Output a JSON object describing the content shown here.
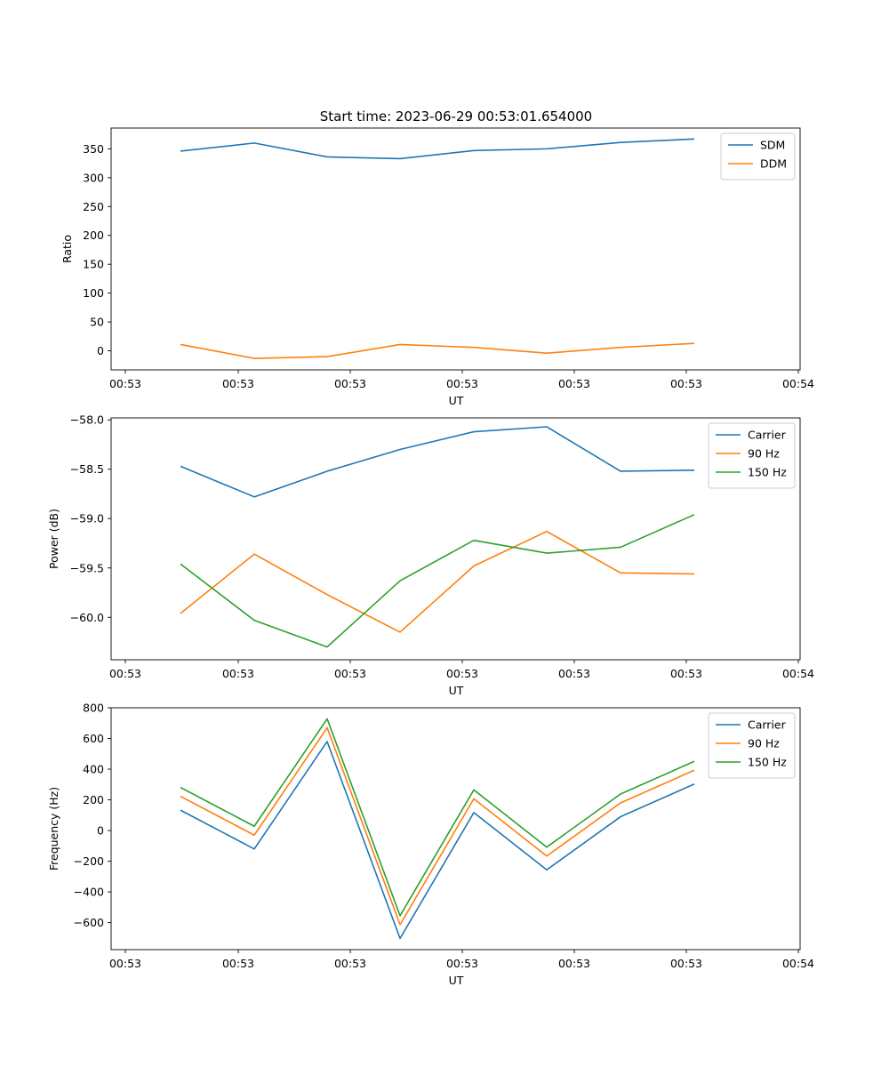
{
  "title": "Start time: 2023-06-29 00:53:01.654000",
  "chart_data": [
    {
      "type": "line",
      "xlabel": "UT",
      "ylabel": "Ratio",
      "x_tick_labels": [
        "00:53",
        "00:53",
        "00:53",
        "00:53",
        "00:53",
        "00:53",
        "00:54"
      ],
      "ylim": [
        -33,
        386
      ],
      "y_ticks": [
        0,
        50,
        100,
        150,
        200,
        250,
        300,
        350
      ],
      "y_tick_labels": [
        "0",
        "50",
        "100",
        "150",
        "200",
        "250",
        "300",
        "350"
      ],
      "legend": "top-right",
      "series": [
        {
          "name": "SDM",
          "color": "#1f77b4",
          "values": [
            346,
            360,
            336,
            333,
            347,
            350,
            361,
            367
          ]
        },
        {
          "name": "DDM",
          "color": "#ff7f0e",
          "values": [
            11,
            -13,
            -10,
            11,
            6,
            -4,
            6,
            13
          ]
        }
      ]
    },
    {
      "type": "line",
      "xlabel": "UT",
      "ylabel": "Power (dB)",
      "x_tick_labels": [
        "00:53",
        "00:53",
        "00:53",
        "00:53",
        "00:53",
        "00:53",
        "00:54"
      ],
      "ylim": [
        -60.43,
        -57.98
      ],
      "y_ticks": [
        -60.0,
        -59.5,
        -59.0,
        -58.5,
        -58.0
      ],
      "y_tick_labels": [
        "−60.0",
        "−59.5",
        "−59.0",
        "−58.5",
        "−58.0"
      ],
      "legend": "top-right",
      "series": [
        {
          "name": "Carrier",
          "color": "#1f77b4",
          "values": [
            -58.47,
            -58.78,
            -58.52,
            -58.3,
            -58.12,
            -58.07,
            -58.52,
            -58.51
          ]
        },
        {
          "name": "90 Hz",
          "color": "#ff7f0e",
          "values": [
            -59.96,
            -59.36,
            -59.77,
            -60.15,
            -59.48,
            -59.13,
            -59.55,
            -59.56
          ]
        },
        {
          "name": "150 Hz",
          "color": "#2ca02c",
          "values": [
            -59.46,
            -60.03,
            -60.3,
            -59.63,
            -59.22,
            -59.35,
            -59.29,
            -58.96
          ]
        }
      ]
    },
    {
      "type": "line",
      "xlabel": "UT",
      "ylabel": "Frequency (Hz)",
      "x_tick_labels": [
        "00:53",
        "00:53",
        "00:53",
        "00:53",
        "00:53",
        "00:53",
        "00:54"
      ],
      "ylim": [
        -776,
        800
      ],
      "y_ticks": [
        -600,
        -400,
        -200,
        0,
        200,
        400,
        600,
        800
      ],
      "y_tick_labels": [
        "−600",
        "−400",
        "−200",
        "0",
        "200",
        "400",
        "600",
        "800"
      ],
      "legend": "top-right",
      "series": [
        {
          "name": "Carrier",
          "color": "#1f77b4",
          "values": [
            133,
            -120,
            580,
            -703,
            117,
            -256,
            90,
            303
          ]
        },
        {
          "name": "90 Hz",
          "color": "#ff7f0e",
          "values": [
            223,
            -30,
            670,
            -613,
            207,
            -166,
            180,
            393
          ]
        },
        {
          "name": "150 Hz",
          "color": "#2ca02c",
          "values": [
            281,
            28,
            728,
            -555,
            265,
            -108,
            238,
            451
          ]
        }
      ]
    }
  ]
}
